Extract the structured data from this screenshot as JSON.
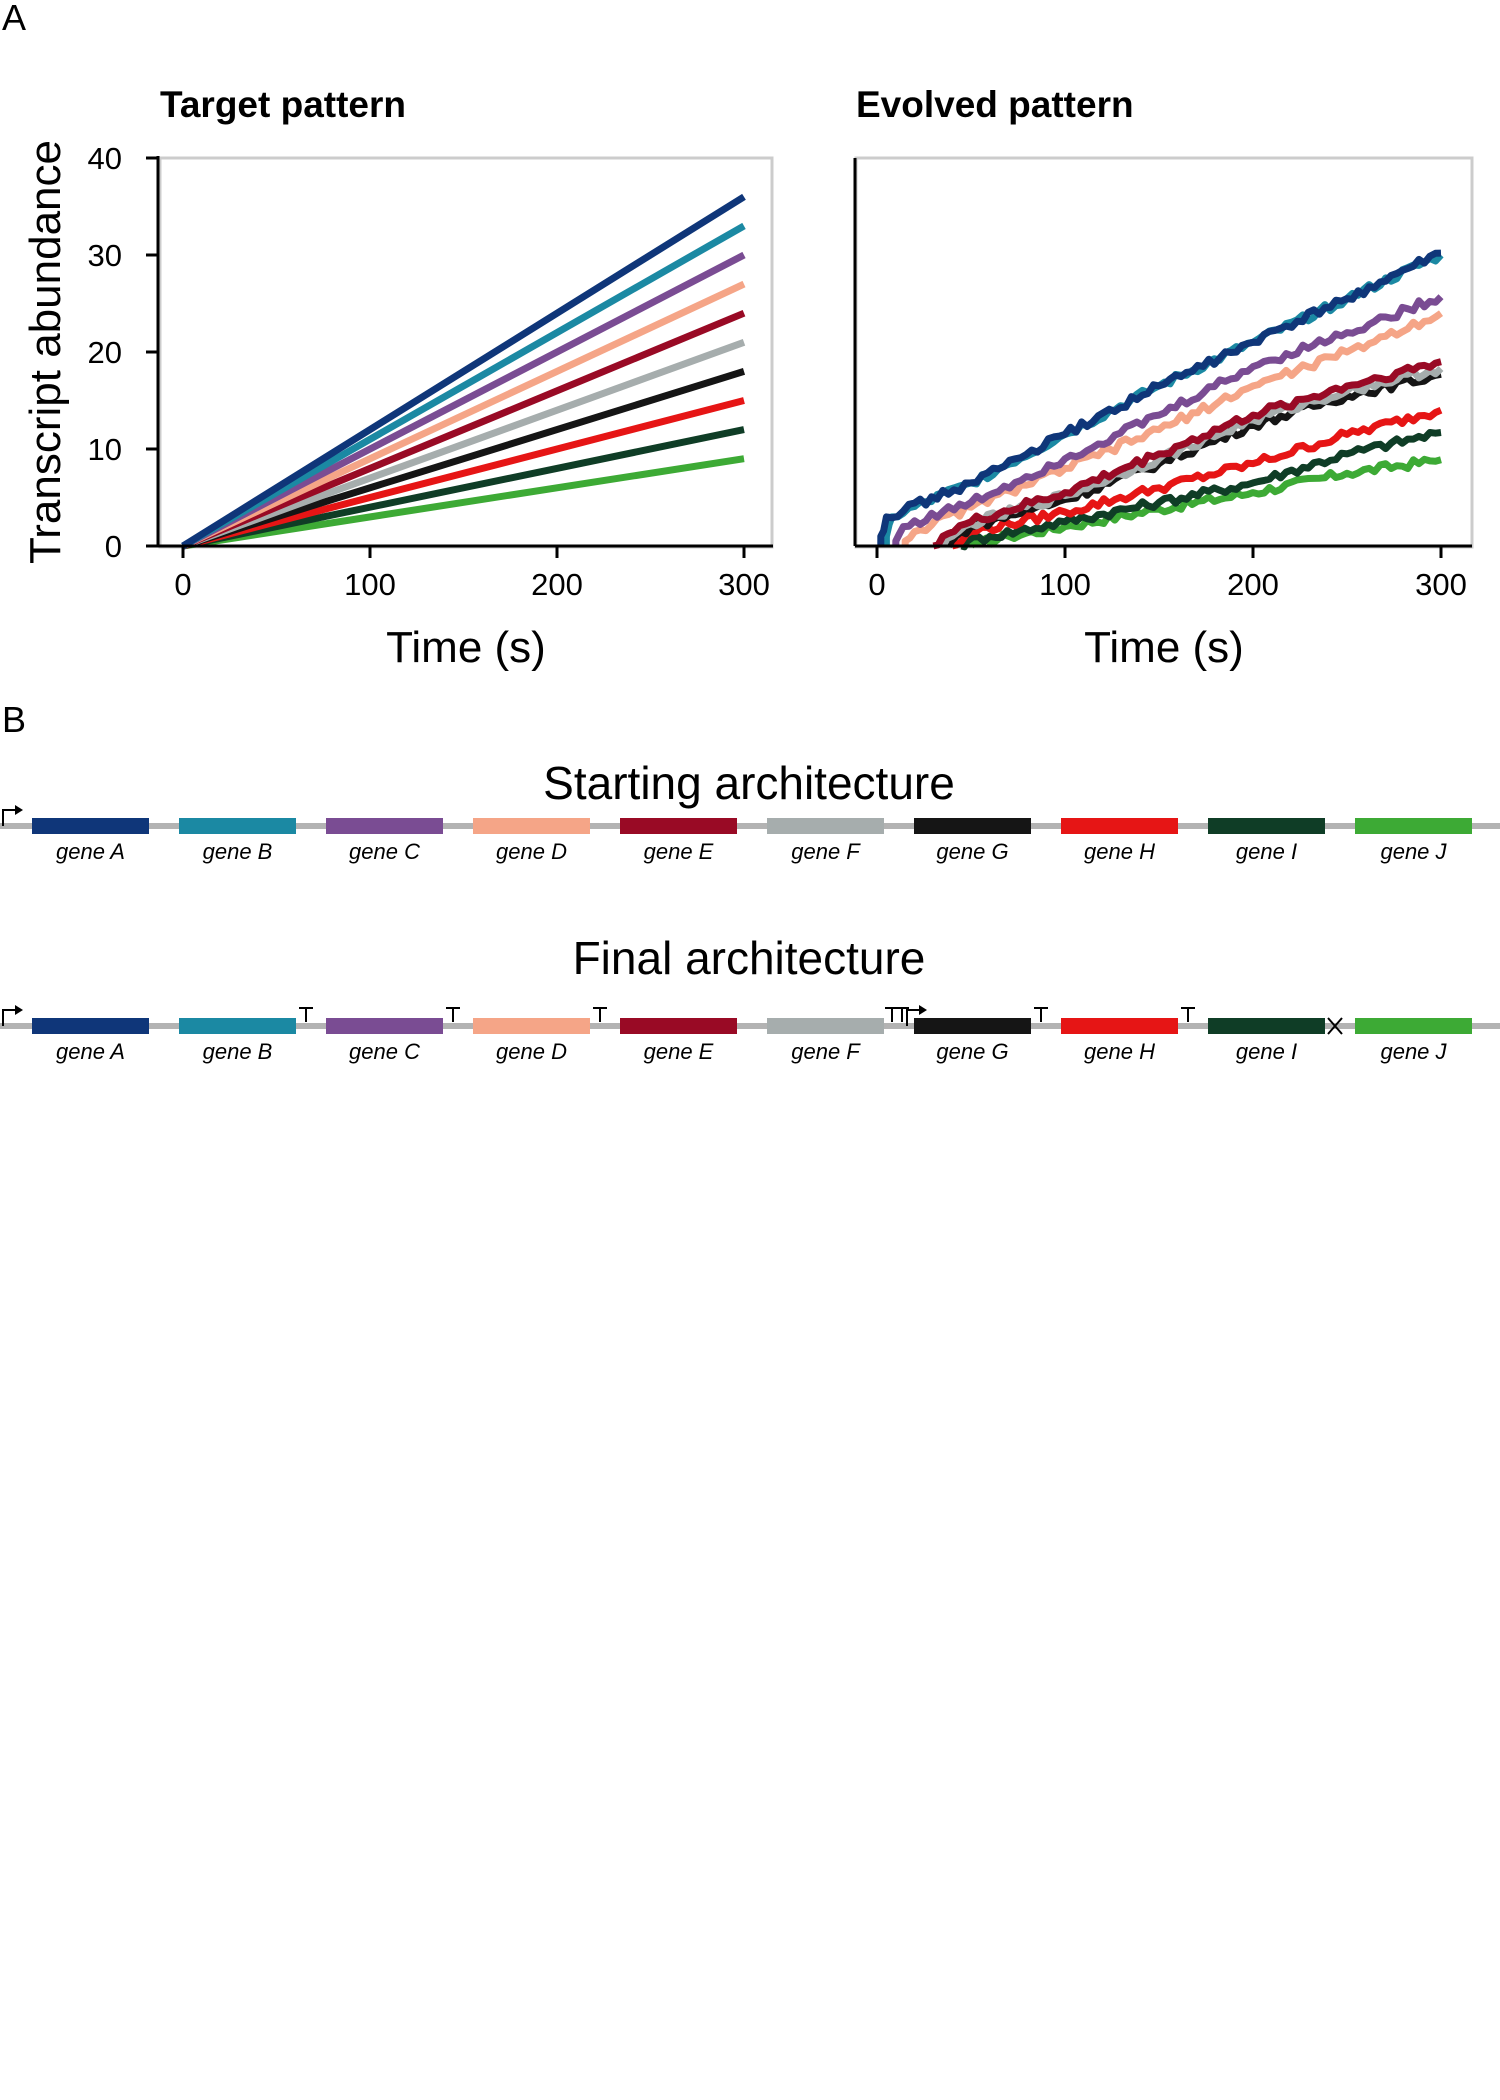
{
  "panels": {
    "a_label": "A",
    "b_label": "B"
  },
  "chart_data": [
    {
      "type": "line",
      "title": "Target pattern",
      "xlabel": "Time (s)",
      "ylabel": "Transcript abundance",
      "xlim": [
        -15,
        315
      ],
      "ylim": [
        0,
        40
      ],
      "xticks": [
        0,
        100,
        200,
        300
      ],
      "yticks": [
        0,
        10,
        20,
        30,
        40
      ],
      "series": [
        {
          "name": "gene A",
          "color": "#0f3679",
          "x": [
            0,
            300
          ],
          "y": [
            0,
            36
          ]
        },
        {
          "name": "gene B",
          "color": "#1b89a3",
          "x": [
            0,
            300
          ],
          "y": [
            0,
            33
          ]
        },
        {
          "name": "gene C",
          "color": "#7a4c93",
          "x": [
            0,
            300
          ],
          "y": [
            0,
            30
          ]
        },
        {
          "name": "gene D",
          "color": "#f5a587",
          "x": [
            0,
            300
          ],
          "y": [
            0,
            27
          ]
        },
        {
          "name": "gene E",
          "color": "#990a25",
          "x": [
            0,
            300
          ],
          "y": [
            0,
            24
          ]
        },
        {
          "name": "gene F",
          "color": "#a6adad",
          "x": [
            0,
            300
          ],
          "y": [
            0,
            21
          ]
        },
        {
          "name": "gene G",
          "color": "#151515",
          "x": [
            0,
            300
          ],
          "y": [
            0,
            18
          ]
        },
        {
          "name": "gene H",
          "color": "#e61515",
          "x": [
            0,
            300
          ],
          "y": [
            0,
            15
          ]
        },
        {
          "name": "gene I",
          "color": "#0f3d26",
          "x": [
            0,
            300
          ],
          "y": [
            0,
            12
          ]
        },
        {
          "name": "gene J",
          "color": "#3daa35",
          "x": [
            0,
            300
          ],
          "y": [
            0,
            9
          ]
        }
      ]
    },
    {
      "type": "line",
      "title": "Evolved pattern",
      "xlabel": "Time (s)",
      "ylabel": "",
      "xlim": [
        -15,
        315
      ],
      "ylim": [
        0,
        40
      ],
      "xticks": [
        0,
        100,
        200,
        300
      ],
      "yticks": [],
      "series": [
        {
          "name": "gene A",
          "color": "#0f3679",
          "x": [
            2,
            5,
            50,
            100,
            150,
            200,
            250,
            300
          ],
          "y": [
            1,
            3,
            6.5,
            11.5,
            16.5,
            21,
            25.5,
            30.2
          ]
        },
        {
          "name": "gene B",
          "color": "#1b89a3",
          "x": [
            5,
            8,
            50,
            100,
            150,
            200,
            250,
            300
          ],
          "y": [
            1,
            3,
            6.5,
            11.5,
            16.5,
            21,
            25.5,
            30
          ]
        },
        {
          "name": "gene C",
          "color": "#7a4c93",
          "x": [
            10,
            14,
            50,
            100,
            150,
            200,
            250,
            300
          ],
          "y": [
            0.5,
            2,
            4.5,
            9,
            13.5,
            18.5,
            22,
            25.7
          ]
        },
        {
          "name": "gene D",
          "color": "#f5a587",
          "x": [
            15,
            20,
            50,
            100,
            150,
            200,
            250,
            300
          ],
          "y": [
            0.5,
            1.5,
            4,
            8,
            12,
            16.5,
            20,
            24
          ]
        },
        {
          "name": "gene E",
          "color": "#990a25",
          "x": [
            30,
            35,
            50,
            100,
            150,
            200,
            250,
            300
          ],
          "y": [
            0,
            1,
            2.5,
            5.5,
            9.5,
            13.5,
            16.5,
            19
          ]
        },
        {
          "name": "gene F",
          "color": "#a6adad",
          "x": [
            35,
            40,
            50,
            100,
            150,
            200,
            250,
            300
          ],
          "y": [
            0,
            1,
            2.3,
            5.2,
            9,
            13,
            16,
            18.3
          ]
        },
        {
          "name": "gene G",
          "color": "#151515",
          "x": [
            38,
            42,
            50,
            100,
            150,
            200,
            250,
            300
          ],
          "y": [
            0,
            1,
            2,
            4.8,
            8.5,
            12.5,
            15.5,
            17.7
          ]
        },
        {
          "name": "gene H",
          "color": "#e61515",
          "x": [
            40,
            45,
            50,
            100,
            150,
            200,
            250,
            300
          ],
          "y": [
            0,
            0.5,
            1.5,
            3.5,
            6,
            8.5,
            11.5,
            14
          ]
        },
        {
          "name": "gene I",
          "color": "#0f3d26",
          "x": [
            45,
            48,
            60,
            100,
            150,
            200,
            250,
            300
          ],
          "y": [
            0,
            0.5,
            1,
            2.5,
            4.5,
            6.5,
            9.5,
            11.7
          ]
        },
        {
          "name": "gene J",
          "color": "#3daa35",
          "x": [
            50,
            55,
            70,
            100,
            150,
            200,
            250,
            300
          ],
          "y": [
            0,
            0.3,
            1,
            2,
            3.8,
            5.5,
            7.5,
            8.9
          ]
        }
      ]
    }
  ],
  "architectures": [
    {
      "title": "Starting architecture",
      "genes": [
        {
          "label": "gene A",
          "color": "#0f3679"
        },
        {
          "label": "gene B",
          "color": "#1b89a3"
        },
        {
          "label": "gene C",
          "color": "#7a4c93"
        },
        {
          "label": "gene D",
          "color": "#f5a587"
        },
        {
          "label": "gene E",
          "color": "#990a25"
        },
        {
          "label": "gene F",
          "color": "#a6adad"
        },
        {
          "label": "gene G",
          "color": "#151515"
        },
        {
          "label": "gene H",
          "color": "#e61515"
        },
        {
          "label": "gene I",
          "color": "#0f3d26"
        },
        {
          "label": "gene J",
          "color": "#3daa35"
        }
      ],
      "elements": [
        {
          "kind": "promoter",
          "after_gene": -1
        }
      ]
    },
    {
      "title": "Final architecture",
      "genes": [
        {
          "label": "gene A",
          "color": "#0f3679"
        },
        {
          "label": "gene B",
          "color": "#1b89a3"
        },
        {
          "label": "gene C",
          "color": "#7a4c93"
        },
        {
          "label": "gene D",
          "color": "#f5a587"
        },
        {
          "label": "gene E",
          "color": "#990a25"
        },
        {
          "label": "gene F",
          "color": "#a6adad"
        },
        {
          "label": "gene G",
          "color": "#151515"
        },
        {
          "label": "gene H",
          "color": "#e61515"
        },
        {
          "label": "gene I",
          "color": "#0f3d26"
        },
        {
          "label": "gene J",
          "color": "#3daa35"
        }
      ],
      "elements": [
        {
          "kind": "promoter",
          "after_gene": -1
        },
        {
          "kind": "terminator",
          "after_gene": 1
        },
        {
          "kind": "terminator",
          "after_gene": 2
        },
        {
          "kind": "terminator",
          "after_gene": 3
        },
        {
          "kind": "terminator-terminator-promoter",
          "after_gene": 5
        },
        {
          "kind": "terminator",
          "after_gene": 6
        },
        {
          "kind": "terminator",
          "after_gene": 7
        },
        {
          "kind": "knockout",
          "after_gene": 8
        }
      ]
    }
  ]
}
